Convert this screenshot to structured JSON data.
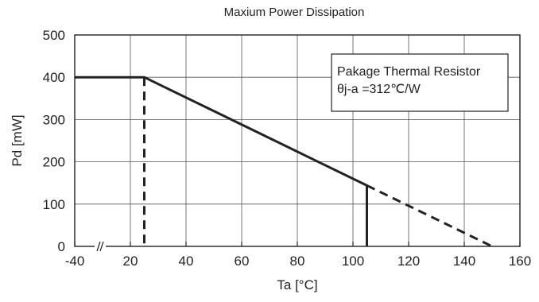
{
  "chart_data": {
    "type": "line",
    "title": "Maxium Power Dissipation",
    "xlabel": "Ta [°C]",
    "ylabel": "Pd [mW]",
    "x_ticks": [
      "-40",
      "20",
      "40",
      "60",
      "80",
      "100",
      "120",
      "140",
      "160"
    ],
    "y_ticks": [
      "500",
      "400",
      "300",
      "200",
      "100",
      "0"
    ],
    "xlim": [
      -40,
      160
    ],
    "ylim": [
      0,
      500
    ],
    "x_axis_break": "between -40 and 20",
    "grid": true,
    "series": [
      {
        "style": "solid",
        "color": "#222222",
        "points": [
          [
            -40,
            400
          ],
          [
            25,
            400
          ],
          [
            105,
            144
          ]
        ]
      },
      {
        "style": "dashed",
        "color": "#222222",
        "points": [
          [
            25,
            400
          ],
          [
            25,
            0
          ]
        ]
      },
      {
        "style": "solid",
        "color": "#222222",
        "points": [
          [
            105,
            144
          ],
          [
            105,
            0
          ]
        ]
      },
      {
        "style": "dashed",
        "color": "#222222",
        "points": [
          [
            105,
            144
          ],
          [
            150,
            0
          ]
        ]
      }
    ],
    "annotation": {
      "line1": "Pakage Thermal Resistor",
      "line2": "θj-a =312℃/W",
      "placement": "top-right"
    }
  }
}
